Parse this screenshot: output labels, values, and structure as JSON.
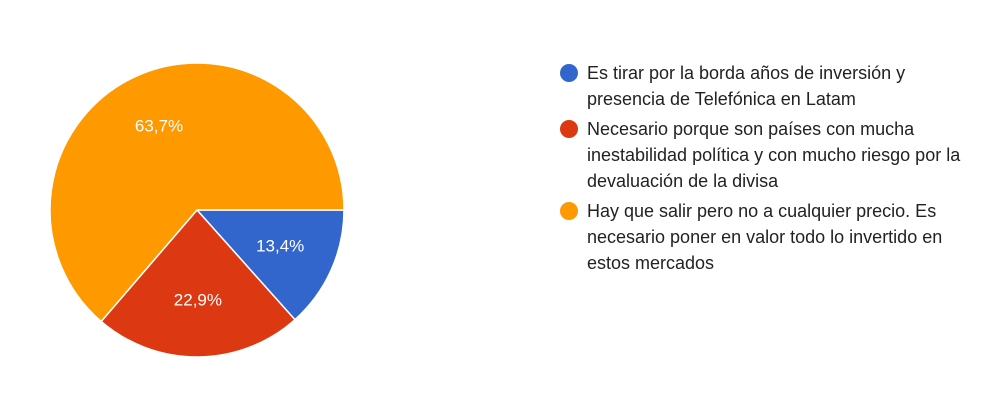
{
  "chart_data": {
    "type": "pie",
    "title": "",
    "legend_position": "right",
    "series": [
      {
        "name": "Es tirar por la borda años de inversión y presencia de Telefónica en Latam",
        "value": 13.4,
        "label": "13,4%",
        "color": "#3366cc"
      },
      {
        "name": "Necesario porque son países con mucha inestabilidad política y con mucho riesgo por la devaluación de la divisa",
        "value": 22.9,
        "label": "22,9%",
        "color": "#dc3912"
      },
      {
        "name": "Hay que salir pero no a cualquier precio. Es necesario poner en valor todo lo invertido en estos mercados",
        "value": 63.7,
        "label": "63,7%",
        "color": "#ff9900"
      }
    ]
  },
  "legend": {
    "items": [
      {
        "text": "Es tirar por la borda años de inversión y presencia de Telefónica en Latam",
        "color": "#3366cc"
      },
      {
        "text": "Necesario porque son países con mucha inestabilidad política y con mucho riesgo por la devaluación de la divisa",
        "color": "#dc3912"
      },
      {
        "text": "Hay que salir pero no a cualquier precio. Es necesario poner en valor todo lo invertido en estos mercados",
        "color": "#ff9900"
      }
    ]
  }
}
